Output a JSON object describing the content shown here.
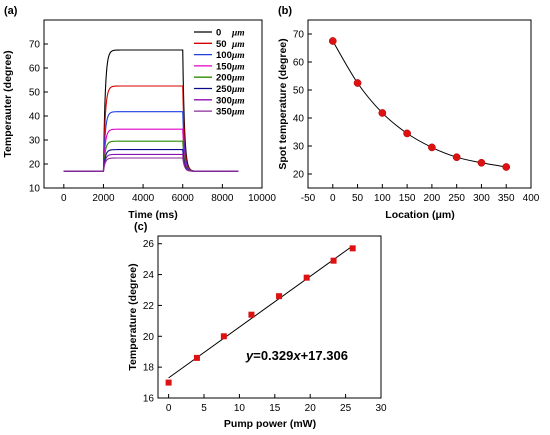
{
  "chart_data": [
    {
      "id": "a",
      "type": "line",
      "panel_label": "(a)",
      "xlabel": "Time (ms)",
      "ylabel": "Temperauter (degree)",
      "xlim": [
        -1000,
        10000
      ],
      "ylim": [
        10,
        80
      ],
      "xticks": [
        0,
        2000,
        4000,
        6000,
        8000,
        10000
      ],
      "yticks": [
        10,
        20,
        30,
        40,
        50,
        60,
        70
      ],
      "pulse": {
        "t_on": 2000,
        "t_off": 6000,
        "t_end": 8800,
        "baseline": 17
      },
      "series": [
        {
          "name": "0",
          "unit": "μm",
          "color": "#000000",
          "plateau": 67.5
        },
        {
          "name": "50",
          "unit": "μm",
          "color": "#d40000",
          "plateau": 52.5
        },
        {
          "name": "100",
          "unit": "μm",
          "color": "#1f3fe0",
          "plateau": 41.8
        },
        {
          "name": "150",
          "unit": "μm",
          "color": "#e000c8",
          "plateau": 34.5
        },
        {
          "name": "200",
          "unit": "μm",
          "color": "#2e8b00",
          "plateau": 29.5
        },
        {
          "name": "250",
          "unit": "μm",
          "color": "#0a0a8c",
          "plateau": 26.0
        },
        {
          "name": "300",
          "unit": "μm",
          "color": "#8b10b0",
          "plateau": 24.0
        },
        {
          "name": "350",
          "unit": "μm",
          "color": "#8b2a9a",
          "plateau": 22.5
        }
      ],
      "grid": false,
      "legend": "top-right"
    },
    {
      "id": "b",
      "type": "line",
      "panel_label": "(b)",
      "xlabel": "Location (μm)",
      "ylabel": "Spot temperature (degree)",
      "xlim": [
        -50,
        400
      ],
      "ylim": [
        15,
        75
      ],
      "xticks": [
        -50,
        0,
        50,
        100,
        150,
        200,
        250,
        300,
        350,
        400
      ],
      "yticks": [
        20,
        30,
        40,
        50,
        60,
        70
      ],
      "x": [
        0,
        50,
        100,
        150,
        200,
        250,
        300,
        350
      ],
      "y": [
        67.5,
        52.5,
        41.8,
        34.5,
        29.5,
        26.0,
        24.0,
        22.5
      ],
      "marker_color": "#dd1111",
      "grid": false
    },
    {
      "id": "c",
      "type": "scatter",
      "panel_label": "(c)",
      "xlabel": "Pump power (mW)",
      "ylabel": "Temperature (degree)",
      "xlim": [
        -1.5,
        30
      ],
      "ylim": [
        16,
        26.5
      ],
      "xticks": [
        0,
        5,
        10,
        15,
        20,
        25,
        30
      ],
      "yticks": [
        16,
        18,
        20,
        22,
        24,
        26
      ],
      "x": [
        0,
        4,
        7.8,
        11.7,
        15.6,
        19.5,
        23.3,
        26
      ],
      "y": [
        17.0,
        18.6,
        20.0,
        21.4,
        22.6,
        23.8,
        24.9,
        25.7
      ],
      "fit": {
        "slope": 0.329,
        "intercept": 17.306,
        "x_range": [
          0,
          26
        ]
      },
      "equation": {
        "lhs": "y",
        "rhs_pre": "=0.329",
        "var": "x",
        "rhs_post": "+17.306"
      },
      "marker_color": "#dd1111",
      "grid": false
    }
  ]
}
